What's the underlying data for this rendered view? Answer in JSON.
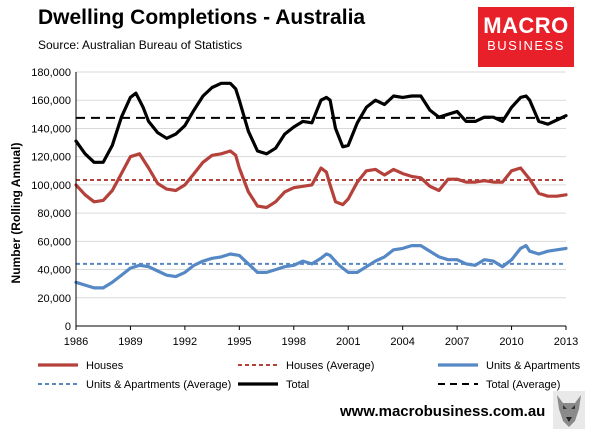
{
  "header": {
    "title": "Dwelling Completions - Australia",
    "subtitle": "Source: Australian Bureau of Statistics"
  },
  "logo": {
    "line1": "MACRO",
    "line2": "BUSINESS",
    "color": "#e8202a"
  },
  "footer": {
    "url": "www.macrobusiness.com.au"
  },
  "chart_data": {
    "type": "line",
    "ylabel": "Number (Rolling Annual)",
    "xlabel": "",
    "ylim": [
      0,
      180000
    ],
    "xlim": [
      1986,
      2013
    ],
    "yticks": [
      0,
      20000,
      40000,
      60000,
      80000,
      100000,
      120000,
      140000,
      160000,
      180000
    ],
    "ytick_labels": [
      "0",
      "20,000",
      "40,000",
      "60,000",
      "80,000",
      "100,000",
      "120,000",
      "140,000",
      "160,000",
      "180,000"
    ],
    "xticks": [
      1986,
      1989,
      1992,
      1995,
      1998,
      2001,
      2004,
      2007,
      2010,
      2013
    ],
    "xtick_labels": [
      "1986",
      "1989",
      "1992",
      "1995",
      "1998",
      "2001",
      "2004",
      "2007",
      "2010",
      "2013"
    ],
    "grid": true,
    "legend_position": "bottom",
    "series": [
      {
        "name": "Houses",
        "color": "#b5413b",
        "style": "solid",
        "points": [
          [
            1986,
            100000
          ],
          [
            1986.5,
            93000
          ],
          [
            1987,
            88000
          ],
          [
            1987.5,
            89000
          ],
          [
            1988,
            96000
          ],
          [
            1988.5,
            108000
          ],
          [
            1989,
            120000
          ],
          [
            1989.5,
            122000
          ],
          [
            1990,
            112000
          ],
          [
            1990.5,
            101000
          ],
          [
            1991,
            97000
          ],
          [
            1991.5,
            96000
          ],
          [
            1992,
            100000
          ],
          [
            1992.5,
            108000
          ],
          [
            1993,
            116000
          ],
          [
            1993.5,
            121000
          ],
          [
            1994,
            122000
          ],
          [
            1994.5,
            124000
          ],
          [
            1994.8,
            121000
          ],
          [
            1995,
            112000
          ],
          [
            1995.5,
            95000
          ],
          [
            1996,
            85000
          ],
          [
            1996.5,
            84000
          ],
          [
            1997,
            88000
          ],
          [
            1997.5,
            95000
          ],
          [
            1998,
            98000
          ],
          [
            1998.5,
            99000
          ],
          [
            1999,
            100000
          ],
          [
            1999.5,
            112000
          ],
          [
            1999.8,
            109000
          ],
          [
            2000,
            100000
          ],
          [
            2000.3,
            88000
          ],
          [
            2000.7,
            86000
          ],
          [
            2001,
            90000
          ],
          [
            2001.5,
            102000
          ],
          [
            2002,
            110000
          ],
          [
            2002.5,
            111000
          ],
          [
            2003,
            107000
          ],
          [
            2003.5,
            111000
          ],
          [
            2004,
            108000
          ],
          [
            2004.5,
            106000
          ],
          [
            2005,
            105000
          ],
          [
            2005.5,
            99000
          ],
          [
            2006,
            96000
          ],
          [
            2006.5,
            104000
          ],
          [
            2007,
            104000
          ],
          [
            2007.5,
            102000
          ],
          [
            2008,
            102000
          ],
          [
            2008.5,
            103000
          ],
          [
            2009,
            102000
          ],
          [
            2009.5,
            102000
          ],
          [
            2010,
            110000
          ],
          [
            2010.5,
            112000
          ],
          [
            2011,
            104000
          ],
          [
            2011.5,
            94000
          ],
          [
            2012,
            92000
          ],
          [
            2012.5,
            92000
          ],
          [
            2013,
            93000
          ]
        ]
      },
      {
        "name": "Houses (Average)",
        "color": "#b5413b",
        "style": "dashed",
        "points": [
          [
            1986,
            103500
          ],
          [
            2013,
            103500
          ]
        ]
      },
      {
        "name": "Units & Apartments",
        "color": "#5588c4",
        "style": "solid",
        "points": [
          [
            1986,
            31000
          ],
          [
            1986.5,
            29000
          ],
          [
            1987,
            27000
          ],
          [
            1987.5,
            27000
          ],
          [
            1988,
            31000
          ],
          [
            1988.5,
            36000
          ],
          [
            1989,
            41000
          ],
          [
            1989.5,
            43000
          ],
          [
            1990,
            42000
          ],
          [
            1990.5,
            39000
          ],
          [
            1991,
            36000
          ],
          [
            1991.5,
            35000
          ],
          [
            1992,
            38000
          ],
          [
            1992.5,
            43000
          ],
          [
            1993,
            46000
          ],
          [
            1993.5,
            48000
          ],
          [
            1994,
            49000
          ],
          [
            1994.5,
            51000
          ],
          [
            1995,
            50000
          ],
          [
            1995.5,
            44000
          ],
          [
            1996,
            38000
          ],
          [
            1996.5,
            38000
          ],
          [
            1997,
            40000
          ],
          [
            1997.5,
            42000
          ],
          [
            1998,
            43000
          ],
          [
            1998.5,
            46000
          ],
          [
            1999,
            44000
          ],
          [
            1999.5,
            48000
          ],
          [
            1999.8,
            51000
          ],
          [
            2000,
            50000
          ],
          [
            2000.5,
            43000
          ],
          [
            2001,
            38000
          ],
          [
            2001.5,
            38000
          ],
          [
            2002,
            42000
          ],
          [
            2002.5,
            46000
          ],
          [
            2003,
            49000
          ],
          [
            2003.5,
            54000
          ],
          [
            2004,
            55000
          ],
          [
            2004.5,
            57000
          ],
          [
            2005,
            57000
          ],
          [
            2005.5,
            53000
          ],
          [
            2006,
            49000
          ],
          [
            2006.5,
            47000
          ],
          [
            2007,
            47000
          ],
          [
            2007.5,
            44000
          ],
          [
            2008,
            43000
          ],
          [
            2008.5,
            47000
          ],
          [
            2009,
            46000
          ],
          [
            2009.5,
            42000
          ],
          [
            2010,
            47000
          ],
          [
            2010.5,
            55000
          ],
          [
            2010.8,
            57000
          ],
          [
            2011,
            53000
          ],
          [
            2011.5,
            51000
          ],
          [
            2012,
            53000
          ],
          [
            2012.5,
            54000
          ],
          [
            2013,
            55000
          ]
        ]
      },
      {
        "name": "Units & Apartments (Average)",
        "color": "#5588c4",
        "style": "dashed",
        "points": [
          [
            1986,
            44000
          ],
          [
            2013,
            44000
          ]
        ]
      },
      {
        "name": "Total",
        "color": "#000000",
        "style": "solid",
        "points": [
          [
            1986,
            131000
          ],
          [
            1986.5,
            122000
          ],
          [
            1987,
            116000
          ],
          [
            1987.5,
            116000
          ],
          [
            1988,
            128000
          ],
          [
            1988.5,
            148000
          ],
          [
            1989,
            162000
          ],
          [
            1989.3,
            165000
          ],
          [
            1989.7,
            155000
          ],
          [
            1990,
            145000
          ],
          [
            1990.5,
            137000
          ],
          [
            1991,
            133000
          ],
          [
            1991.5,
            136000
          ],
          [
            1992,
            142000
          ],
          [
            1992.5,
            153000
          ],
          [
            1993,
            163000
          ],
          [
            1993.5,
            169000
          ],
          [
            1994,
            172000
          ],
          [
            1994.5,
            172000
          ],
          [
            1994.8,
            168000
          ],
          [
            1995,
            160000
          ],
          [
            1995.5,
            138000
          ],
          [
            1996,
            124000
          ],
          [
            1996.5,
            122000
          ],
          [
            1997,
            126000
          ],
          [
            1997.5,
            136000
          ],
          [
            1998,
            141000
          ],
          [
            1998.5,
            145000
          ],
          [
            1999,
            144000
          ],
          [
            1999.5,
            160000
          ],
          [
            1999.8,
            162000
          ],
          [
            2000,
            160000
          ],
          [
            2000.3,
            140000
          ],
          [
            2000.7,
            127000
          ],
          [
            2001,
            128000
          ],
          [
            2001.5,
            144000
          ],
          [
            2002,
            155000
          ],
          [
            2002.5,
            160000
          ],
          [
            2003,
            157000
          ],
          [
            2003.5,
            163000
          ],
          [
            2004,
            162000
          ],
          [
            2004.5,
            163000
          ],
          [
            2005,
            163000
          ],
          [
            2005.5,
            153000
          ],
          [
            2006,
            148000
          ],
          [
            2006.5,
            150000
          ],
          [
            2007,
            152000
          ],
          [
            2007.5,
            145000
          ],
          [
            2008,
            145000
          ],
          [
            2008.5,
            148000
          ],
          [
            2009,
            148000
          ],
          [
            2009.5,
            145000
          ],
          [
            2010,
            155000
          ],
          [
            2010.5,
            162000
          ],
          [
            2010.8,
            163000
          ],
          [
            2011,
            160000
          ],
          [
            2011.5,
            145000
          ],
          [
            2012,
            143000
          ],
          [
            2012.5,
            146000
          ],
          [
            2013,
            149000
          ]
        ]
      },
      {
        "name": "Total (Average)",
        "color": "#000000",
        "style": "dashed",
        "points": [
          [
            1986,
            147500
          ],
          [
            2013,
            147500
          ]
        ]
      }
    ]
  }
}
